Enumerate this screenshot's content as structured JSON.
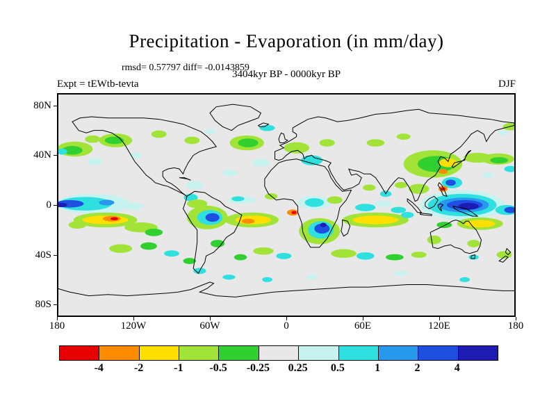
{
  "figure": {
    "title": "Precipitation - Evaporation (in mm/day)",
    "stats": "rmsd= 0.57797 diff= -0.0143859",
    "period": "3404kyr BP - 0000kyr BP",
    "experiment": "Expt = tEWtb-tevta",
    "season": "DJF"
  },
  "axes": {
    "lat_ticks": [
      {
        "label": "80N",
        "lat": 80
      },
      {
        "label": "40N",
        "lat": 40
      },
      {
        "label": "0",
        "lat": 0
      },
      {
        "label": "40S",
        "lat": -40
      },
      {
        "label": "80S",
        "lat": -80
      }
    ],
    "lon_ticks": [
      {
        "label": "180",
        "lon": -180
      },
      {
        "label": "120W",
        "lon": -120
      },
      {
        "label": "60W",
        "lon": -60
      },
      {
        "label": "0",
        "lon": 0
      },
      {
        "label": "60E",
        "lon": 60
      },
      {
        "label": "120E",
        "lon": 120
      },
      {
        "label": "180",
        "lon": 180
      }
    ]
  },
  "colorbar": {
    "labels": [
      "-4",
      "-2",
      "-1",
      "-0.5",
      "-0.25",
      "0.25",
      "0.5",
      "1",
      "2",
      "4"
    ],
    "colors": [
      "#e60000",
      "#ff8c00",
      "#ffdf00",
      "#a2e337",
      "#30d030",
      "#e8e8e8",
      "#c6f2ef",
      "#2fe0e0",
      "#2897ee",
      "#1f4fe0",
      "#1c1cb4"
    ]
  },
  "chart_data": {
    "type": "heatmap",
    "title": "Precipitation - Evaporation (in mm/day)",
    "subtitle": "3404kyr BP - 0000kyr BP",
    "season": "DJF",
    "experiment": "tEWtb-tevta",
    "rmsd": 0.57797,
    "diff": -0.0143859,
    "units": "mm/day",
    "projection": "equirectangular",
    "lon_range": [
      -180,
      180
    ],
    "lat_range": [
      -90,
      90
    ],
    "levels": [
      -4,
      -2,
      -1,
      -0.5,
      -0.25,
      0.25,
      0.5,
      1,
      2,
      4
    ],
    "palette": [
      "#e60000",
      "#ff8c00",
      "#ffdf00",
      "#a2e337",
      "#30d030",
      "#e8e8e8",
      "#c6f2ef",
      "#2fe0e0",
      "#2897ee",
      "#1f4fe0",
      "#1c1cb4"
    ],
    "background": "#e8e8e8",
    "anomaly_encoding": "[lon_center, lat_center, lon_extent_deg, lat_extent_deg, palette_index]",
    "anomalies": [
      [
        -166,
        45,
        28,
        12,
        3
      ],
      [
        -168,
        44,
        16,
        7,
        4
      ],
      [
        -176,
        43,
        8,
        5,
        7
      ],
      [
        -152,
        53,
        12,
        6,
        3
      ],
      [
        -150,
        35,
        12,
        6,
        6
      ],
      [
        176,
        63,
        12,
        6,
        3
      ],
      [
        170,
        58,
        8,
        4,
        6
      ],
      [
        -134,
        52,
        26,
        11,
        3
      ],
      [
        -135,
        52,
        15,
        6,
        4
      ],
      [
        -100,
        57,
        12,
        6,
        3
      ],
      [
        -118,
        40,
        9,
        5,
        6
      ],
      [
        -74,
        52,
        12,
        6,
        3
      ],
      [
        -60,
        59,
        9,
        4,
        6
      ],
      [
        -31,
        50,
        27,
        12,
        3
      ],
      [
        -30,
        50,
        16,
        7,
        4
      ],
      [
        -15,
        62,
        12,
        5,
        7
      ],
      [
        -44,
        26,
        12,
        5,
        6
      ],
      [
        -20,
        34,
        14,
        6,
        6
      ],
      [
        8,
        46,
        20,
        9,
        3
      ],
      [
        20,
        36,
        17,
        8,
        7
      ],
      [
        32,
        50,
        12,
        6,
        3
      ],
      [
        70,
        50,
        14,
        6,
        3
      ],
      [
        92,
        55,
        11,
        5,
        3
      ],
      [
        115,
        33,
        46,
        22,
        3
      ],
      [
        118,
        33,
        30,
        13,
        4
      ],
      [
        127,
        34,
        14,
        7,
        2
      ],
      [
        123,
        27,
        7,
        4,
        1
      ],
      [
        150,
        38,
        22,
        8,
        3
      ],
      [
        166,
        37,
        26,
        9,
        3
      ],
      [
        167,
        36,
        14,
        5,
        4
      ],
      [
        176,
        29,
        10,
        5,
        7
      ],
      [
        158,
        24,
        9,
        4,
        6
      ],
      [
        130,
        18,
        16,
        9,
        7
      ],
      [
        129,
        18,
        8,
        5,
        9
      ],
      [
        123,
        13,
        7,
        5,
        1
      ],
      [
        123,
        13,
        3.5,
        2.5,
        0
      ],
      [
        -152,
        1,
        58,
        16,
        6
      ],
      [
        -158,
        1,
        42,
        11,
        7
      ],
      [
        -170,
        1,
        22,
        6,
        9
      ],
      [
        -177,
        0,
        10,
        3.5,
        10
      ],
      [
        -141,
        2,
        12,
        4.5,
        8
      ],
      [
        -120,
        -1,
        16,
        6,
        6
      ],
      [
        -142,
        -12,
        50,
        12,
        3
      ],
      [
        -142,
        -12,
        36,
        7,
        2
      ],
      [
        -137,
        -11,
        14,
        4.5,
        1
      ],
      [
        -135,
        -11,
        6,
        2.5,
        0
      ],
      [
        -114,
        -18,
        26,
        8,
        3
      ],
      [
        -104,
        -22,
        14,
        6,
        4
      ],
      [
        -164,
        -16,
        14,
        6,
        3
      ],
      [
        -130,
        -35,
        18,
        7,
        3
      ],
      [
        -108,
        -33,
        13,
        6,
        4
      ],
      [
        -90,
        -39,
        12,
        5,
        7
      ],
      [
        -76,
        -45,
        10,
        5,
        4
      ],
      [
        -68,
        -53,
        10,
        5,
        7
      ],
      [
        -62,
        -10,
        32,
        19,
        3
      ],
      [
        -60,
        -10,
        20,
        12,
        7
      ],
      [
        -58,
        -10,
        11,
        7,
        9
      ],
      [
        -75,
        6,
        11,
        6,
        7
      ],
      [
        -70,
        1,
        16,
        7,
        3
      ],
      [
        -72,
        16,
        14,
        6,
        6
      ],
      [
        -54,
        -31,
        11,
        6,
        4
      ],
      [
        -35,
        4,
        22,
        6,
        6
      ],
      [
        -38,
        5,
        10,
        4,
        7
      ],
      [
        -12,
        7,
        10,
        5,
        3
      ],
      [
        -27,
        -12,
        42,
        12,
        3
      ],
      [
        -26,
        -12,
        28,
        7,
        2
      ],
      [
        -30,
        -13,
        10,
        4,
        1
      ],
      [
        5,
        -6,
        9,
        5,
        1
      ],
      [
        6,
        -6,
        4,
        2.5,
        0
      ],
      [
        -18,
        -37,
        16,
        6,
        3
      ],
      [
        -2,
        -41,
        12,
        5,
        7
      ],
      [
        -36,
        -42,
        10,
        5,
        4
      ],
      [
        22,
        2,
        26,
        11,
        6
      ],
      [
        22,
        2,
        15,
        7,
        7
      ],
      [
        38,
        4,
        12,
        6,
        3
      ],
      [
        26,
        -21,
        32,
        21,
        3
      ],
      [
        27,
        -20,
        20,
        14,
        7
      ],
      [
        28,
        -19,
        12,
        8,
        9
      ],
      [
        29,
        -16,
        5,
        3.5,
        10
      ],
      [
        70,
        -12,
        52,
        12,
        3
      ],
      [
        70,
        -12,
        36,
        7,
        2
      ],
      [
        62,
        -2,
        16,
        6,
        7
      ],
      [
        76,
        1,
        14,
        5,
        6
      ],
      [
        88,
        -4,
        12,
        5,
        7
      ],
      [
        95,
        -8,
        10,
        5,
        7
      ],
      [
        78,
        9,
        9,
        5,
        7
      ],
      [
        90,
        16,
        10,
        5,
        3
      ],
      [
        65,
        14,
        10,
        5,
        3
      ],
      [
        45,
        -39,
        20,
        7,
        3
      ],
      [
        62,
        -41,
        14,
        6,
        7
      ],
      [
        85,
        -42,
        14,
        5,
        4
      ],
      [
        104,
        -40,
        12,
        5,
        3
      ],
      [
        104,
        13,
        16,
        8,
        3
      ],
      [
        138,
        0,
        66,
        24,
        6
      ],
      [
        138,
        0,
        54,
        18,
        7
      ],
      [
        139,
        0,
        40,
        12,
        8
      ],
      [
        140,
        0,
        28,
        8,
        9
      ],
      [
        143,
        -1,
        16,
        5.5,
        10
      ],
      [
        173,
        -4,
        18,
        8,
        7
      ],
      [
        176,
        -4,
        10,
        5,
        9
      ],
      [
        152,
        -15,
        36,
        10,
        3
      ],
      [
        152,
        -15,
        24,
        6,
        2
      ],
      [
        124,
        -16,
        12,
        5,
        4
      ],
      [
        116,
        -28,
        11,
        7,
        3
      ],
      [
        147,
        -31,
        10,
        6,
        3
      ],
      [
        147,
        -42,
        8,
        4,
        7
      ],
      [
        171,
        -40,
        12,
        6,
        3
      ],
      [
        -45,
        -58,
        10,
        4,
        7
      ],
      [
        -15,
        -60,
        8,
        4,
        7
      ],
      [
        20,
        -58,
        8,
        4,
        6
      ],
      [
        90,
        -55,
        10,
        4,
        6
      ],
      [
        140,
        -60,
        8,
        4,
        7
      ]
    ]
  }
}
